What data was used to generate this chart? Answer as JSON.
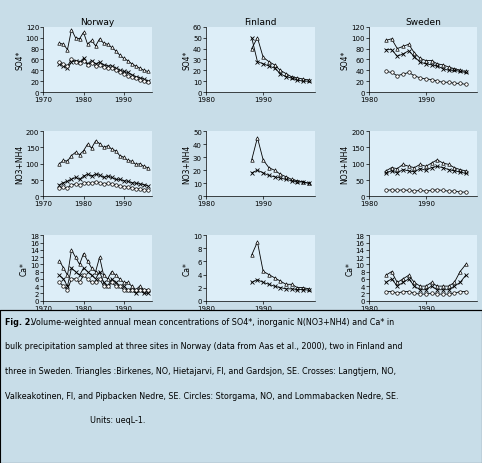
{
  "background_color": "#c8dde8",
  "panel_bg": "#ddeef8",
  "caption_bg": "#c8dde8",
  "norway_so4_tri": {
    "years": [
      1974,
      1975,
      1976,
      1977,
      1978,
      1979,
      1980,
      1981,
      1982,
      1983,
      1984,
      1985,
      1986,
      1987,
      1988,
      1989,
      1990,
      1991,
      1992,
      1993,
      1994,
      1995,
      1996
    ],
    "values": [
      90,
      88,
      78,
      115,
      100,
      98,
      110,
      88,
      95,
      85,
      98,
      90,
      88,
      82,
      76,
      68,
      62,
      58,
      52,
      48,
      44,
      40,
      38
    ]
  },
  "norway_so4_cross": {
    "years": [
      1974,
      1975,
      1976,
      1977,
      1978,
      1979,
      1980,
      1981,
      1982,
      1983,
      1984,
      1985,
      1986,
      1987,
      1988,
      1989,
      1990,
      1991,
      1992,
      1993,
      1994,
      1995,
      1996
    ],
    "values": [
      52,
      48,
      44,
      55,
      58,
      55,
      62,
      52,
      58,
      52,
      55,
      50,
      48,
      48,
      44,
      40,
      38,
      36,
      32,
      28,
      26,
      24,
      20
    ]
  },
  "norway_so4_circ": {
    "years": [
      1974,
      1975,
      1976,
      1977,
      1978,
      1979,
      1980,
      1981,
      1982,
      1983,
      1984,
      1985,
      1986,
      1987,
      1988,
      1989,
      1990,
      1991,
      1992,
      1993,
      1994,
      1995,
      1996
    ],
    "values": [
      55,
      52,
      48,
      60,
      56,
      53,
      58,
      50,
      54,
      48,
      50,
      46,
      44,
      44,
      40,
      37,
      34,
      30,
      28,
      25,
      23,
      21,
      18
    ]
  },
  "norway_no3_tri": {
    "years": [
      1974,
      1975,
      1976,
      1977,
      1978,
      1979,
      1980,
      1981,
      1982,
      1983,
      1984,
      1985,
      1986,
      1987,
      1988,
      1989,
      1990,
      1991,
      1992,
      1993,
      1994,
      1995,
      1996
    ],
    "values": [
      100,
      110,
      108,
      125,
      135,
      128,
      140,
      160,
      148,
      170,
      162,
      150,
      155,
      145,
      140,
      125,
      120,
      110,
      108,
      98,
      100,
      92,
      88
    ]
  },
  "norway_no3_cross": {
    "years": [
      1974,
      1975,
      1976,
      1977,
      1978,
      1979,
      1980,
      1981,
      1982,
      1983,
      1984,
      1985,
      1986,
      1987,
      1988,
      1989,
      1990,
      1991,
      1992,
      1993,
      1994,
      1995,
      1996
    ],
    "values": [
      35,
      42,
      46,
      52,
      58,
      52,
      62,
      68,
      62,
      68,
      65,
      58,
      62,
      58,
      52,
      52,
      48,
      46,
      42,
      40,
      38,
      36,
      32
    ]
  },
  "norway_no3_circ": {
    "years": [
      1974,
      1975,
      1976,
      1977,
      1978,
      1979,
      1980,
      1981,
      1982,
      1983,
      1984,
      1985,
      1986,
      1987,
      1988,
      1989,
      1990,
      1991,
      1992,
      1993,
      1994,
      1995,
      1996
    ],
    "values": [
      25,
      28,
      26,
      35,
      38,
      35,
      40,
      42,
      40,
      45,
      42,
      38,
      40,
      38,
      36,
      32,
      30,
      28,
      26,
      23,
      23,
      20,
      18
    ]
  },
  "norway_ca_tri": {
    "years": [
      1974,
      1975,
      1976,
      1977,
      1978,
      1979,
      1980,
      1981,
      1982,
      1983,
      1984,
      1985,
      1986,
      1987,
      1988,
      1989,
      1990,
      1991,
      1992,
      1993,
      1994,
      1995,
      1996
    ],
    "values": [
      11,
      9,
      7,
      14,
      12,
      10,
      13,
      11,
      9,
      8,
      12,
      7,
      6,
      8,
      7,
      6,
      5,
      5,
      4,
      3,
      4,
      3,
      3
    ]
  },
  "norway_ca_cross": {
    "years": [
      1974,
      1975,
      1976,
      1977,
      1978,
      1979,
      1980,
      1981,
      1982,
      1983,
      1984,
      1985,
      1986,
      1987,
      1988,
      1989,
      1990,
      1991,
      1992,
      1993,
      1994,
      1995,
      1996
    ],
    "values": [
      7,
      6,
      4,
      9,
      8,
      7,
      9,
      8,
      7,
      6,
      8,
      5,
      4,
      6,
      5,
      4,
      4,
      3,
      3,
      2,
      3,
      2,
      2
    ]
  },
  "norway_ca_circ": {
    "years": [
      1974,
      1975,
      1976,
      1977,
      1978,
      1979,
      1980,
      1981,
      1982,
      1983,
      1984,
      1985,
      1986,
      1987,
      1988,
      1989,
      1990,
      1991,
      1992,
      1993,
      1994,
      1995,
      1996
    ],
    "values": [
      5,
      4,
      3,
      6,
      6,
      5,
      7,
      6,
      5,
      5,
      6,
      4,
      4,
      5,
      4,
      4,
      3,
      3,
      3,
      3,
      3,
      3,
      3
    ]
  },
  "finland_so4_tri": {
    "years": [
      1988,
      1989,
      1990,
      1991,
      1992,
      1993,
      1994,
      1995,
      1996,
      1997,
      1998
    ],
    "values": [
      40,
      50,
      32,
      28,
      25,
      20,
      17,
      14,
      13,
      12,
      11
    ]
  },
  "finland_so4_cross": {
    "years": [
      1988,
      1989,
      1990,
      1991,
      1992,
      1993,
      1994,
      1995,
      1996,
      1997,
      1998
    ],
    "values": [
      50,
      28,
      26,
      24,
      22,
      17,
      14,
      13,
      11,
      10,
      10
    ]
  },
  "finland_no3_tri": {
    "years": [
      1988,
      1989,
      1990,
      1991,
      1992,
      1993,
      1994,
      1995,
      1996,
      1997,
      1998
    ],
    "values": [
      28,
      45,
      28,
      22,
      20,
      17,
      15,
      13,
      12,
      11,
      10
    ]
  },
  "finland_no3_cross": {
    "years": [
      1988,
      1989,
      1990,
      1991,
      1992,
      1993,
      1994,
      1995,
      1996,
      1997,
      1998
    ],
    "values": [
      18,
      20,
      18,
      16,
      15,
      14,
      13,
      12,
      11,
      11,
      10
    ]
  },
  "finland_ca_tri": {
    "years": [
      1988,
      1989,
      1990,
      1991,
      1992,
      1993,
      1994,
      1995,
      1996,
      1997,
      1998
    ],
    "values": [
      7,
      9,
      4.5,
      4,
      3.5,
      3,
      2.5,
      2.5,
      2,
      2,
      1.8
    ]
  },
  "finland_ca_cross": {
    "years": [
      1988,
      1989,
      1990,
      1991,
      1992,
      1993,
      1994,
      1995,
      1996,
      1997,
      1998
    ],
    "values": [
      2.8,
      3.2,
      2.8,
      2.5,
      2.2,
      2,
      1.8,
      1.8,
      1.7,
      1.7,
      1.6
    ]
  },
  "sweden_so4_tri": {
    "years": [
      1983,
      1984,
      1985,
      1986,
      1987,
      1988,
      1989,
      1990,
      1991,
      1992,
      1993,
      1994,
      1995,
      1996,
      1997
    ],
    "values": [
      95,
      98,
      80,
      84,
      88,
      72,
      62,
      58,
      58,
      52,
      50,
      46,
      43,
      40,
      38
    ]
  },
  "sweden_so4_cross": {
    "years": [
      1983,
      1984,
      1985,
      1986,
      1987,
      1988,
      1989,
      1990,
      1991,
      1992,
      1993,
      1994,
      1995,
      1996,
      1997
    ],
    "values": [
      78,
      78,
      66,
      70,
      76,
      65,
      55,
      52,
      50,
      48,
      43,
      40,
      40,
      38,
      36
    ]
  },
  "sweden_so4_circ": {
    "years": [
      1983,
      1984,
      1985,
      1986,
      1987,
      1988,
      1989,
      1990,
      1991,
      1992,
      1993,
      1994,
      1995,
      1996,
      1997
    ],
    "values": [
      38,
      36,
      30,
      33,
      36,
      30,
      26,
      24,
      23,
      20,
      18,
      18,
      16,
      16,
      14
    ]
  },
  "sweden_no3_tri": {
    "years": [
      1983,
      1984,
      1985,
      1986,
      1987,
      1988,
      1989,
      1990,
      1991,
      1992,
      1993,
      1994,
      1995,
      1996,
      1997
    ],
    "values": [
      78,
      88,
      85,
      98,
      92,
      88,
      98,
      92,
      102,
      112,
      102,
      98,
      88,
      82,
      78
    ]
  },
  "sweden_no3_cross": {
    "years": [
      1983,
      1984,
      1985,
      1986,
      1987,
      1988,
      1989,
      1990,
      1991,
      1992,
      1993,
      1994,
      1995,
      1996,
      1997
    ],
    "values": [
      72,
      78,
      72,
      82,
      78,
      75,
      85,
      80,
      88,
      92,
      88,
      82,
      78,
      75,
      70
    ]
  },
  "sweden_no3_circ": {
    "years": [
      1983,
      1984,
      1985,
      1986,
      1987,
      1988,
      1989,
      1990,
      1991,
      1992,
      1993,
      1994,
      1995,
      1996,
      1997
    ],
    "values": [
      18,
      20,
      18,
      20,
      18,
      16,
      18,
      16,
      18,
      20,
      18,
      16,
      16,
      13,
      13
    ]
  },
  "sweden_ca_tri": {
    "years": [
      1983,
      1984,
      1985,
      1986,
      1987,
      1988,
      1989,
      1990,
      1991,
      1992,
      1993,
      1994,
      1995,
      1996,
      1997
    ],
    "values": [
      7,
      8,
      5,
      6,
      7,
      5,
      4,
      4,
      5,
      4,
      4,
      4,
      5,
      8,
      10
    ]
  },
  "sweden_ca_cross": {
    "years": [
      1983,
      1984,
      1985,
      1986,
      1987,
      1988,
      1989,
      1990,
      1991,
      1992,
      1993,
      1994,
      1995,
      1996,
      1997
    ],
    "values": [
      5,
      6,
      4,
      5,
      6,
      4,
      3,
      3,
      4,
      3,
      3,
      3,
      4,
      5,
      7
    ]
  },
  "sweden_ca_circ": {
    "years": [
      1983,
      1984,
      1985,
      1986,
      1987,
      1988,
      1989,
      1990,
      1991,
      1992,
      1993,
      1994,
      1995,
      1996,
      1997
    ],
    "values": [
      2.5,
      2.5,
      2,
      2.5,
      2.5,
      2,
      1.8,
      1.8,
      2,
      1.8,
      1.8,
      1.8,
      2,
      2.5,
      2.5
    ]
  }
}
